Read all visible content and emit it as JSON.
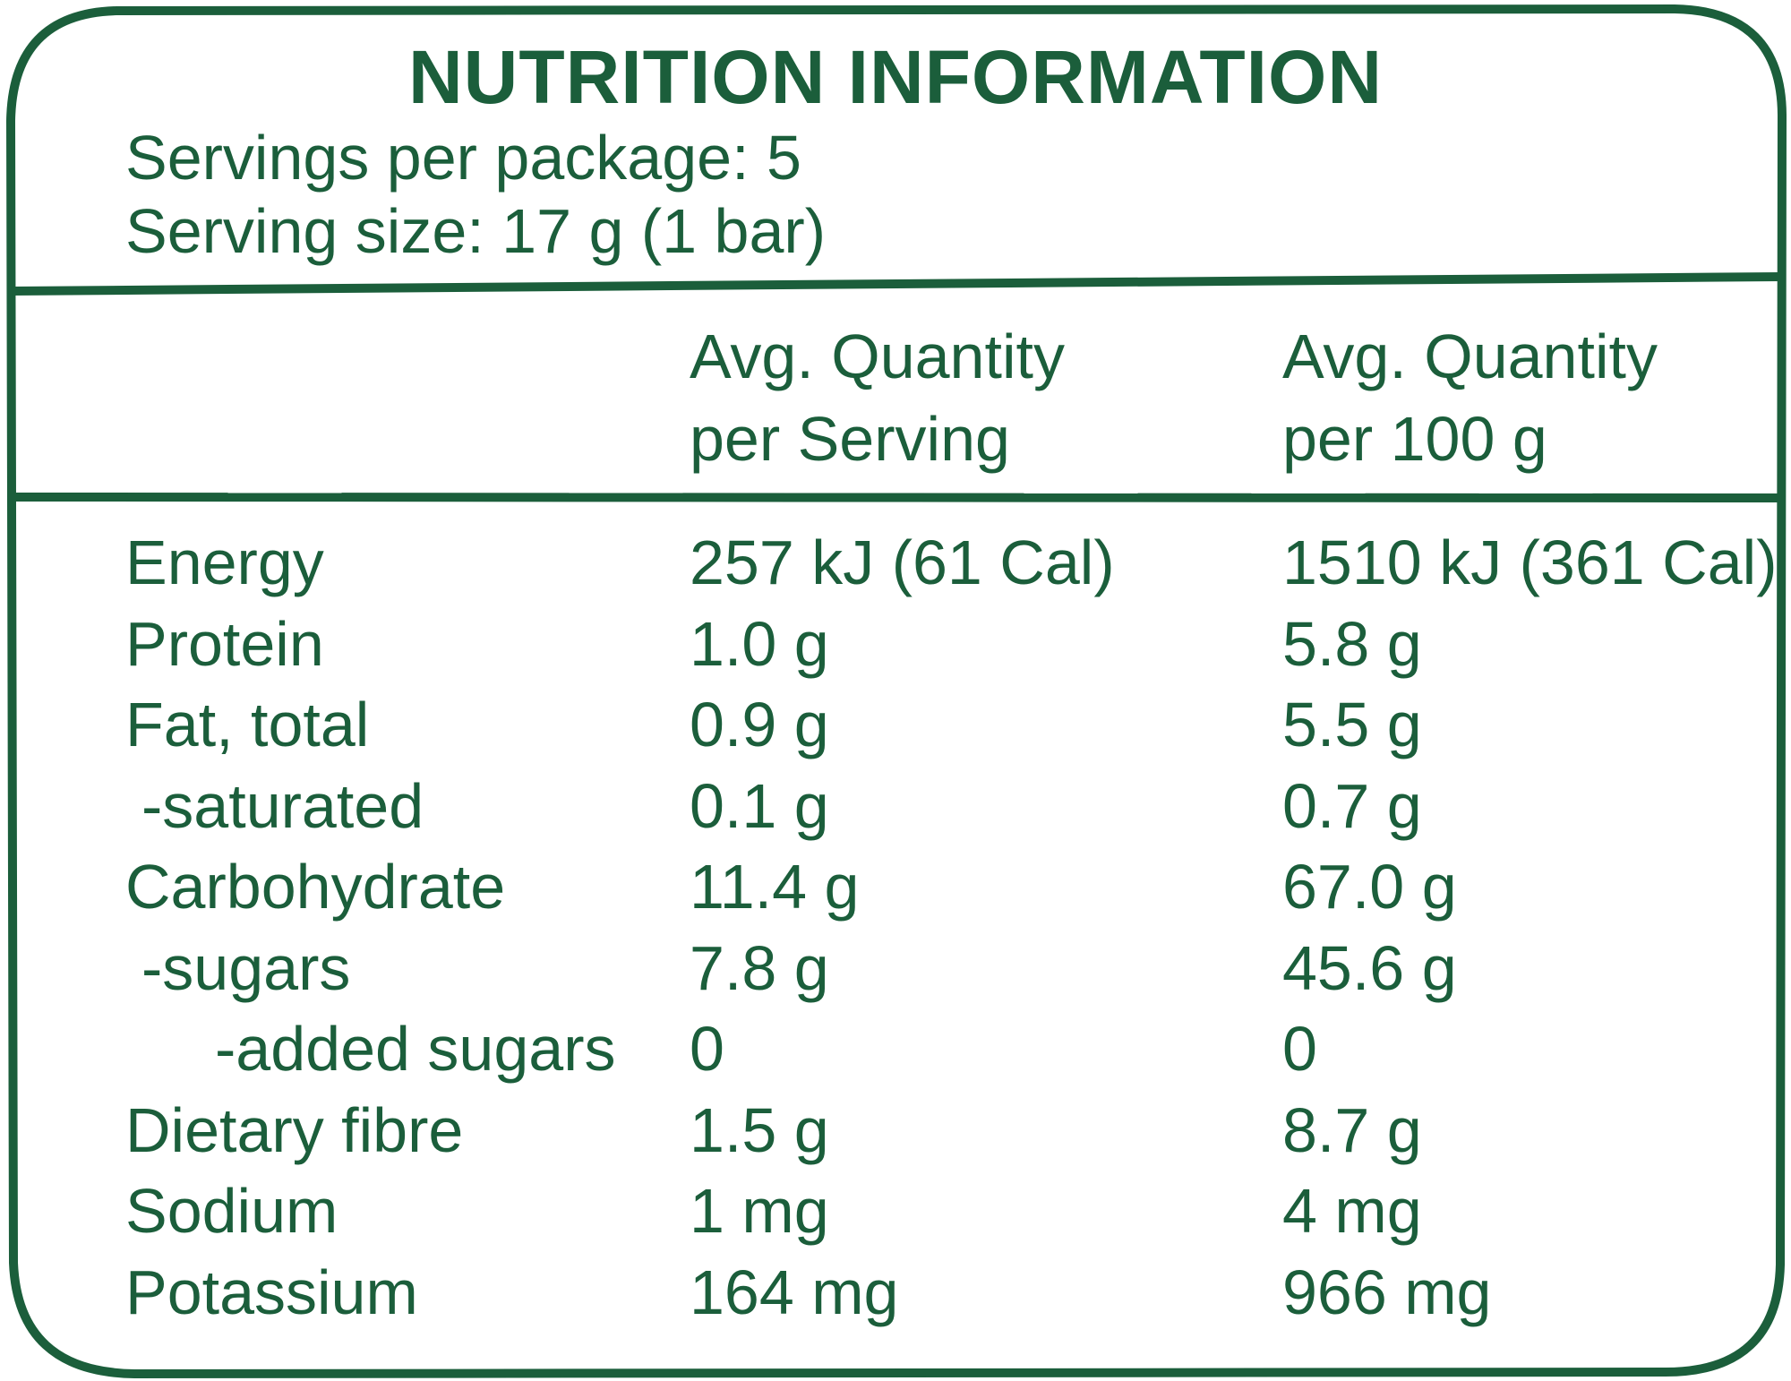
{
  "panel": {
    "title": "NUTRITION INFORMATION",
    "servings_per_package": "Servings per package: 5",
    "serving_size": "Serving size: 17 g (1 bar)",
    "border_color": "#1b5e3b"
  },
  "columns": {
    "per_serving_line1": "Avg. Quantity",
    "per_serving_line2": "per Serving",
    "per_100g_line1": "Avg. Quantity",
    "per_100g_line2": "per 100 g"
  },
  "rows": [
    {
      "name": "Energy",
      "per_serving": "257 kJ (61 Cal)",
      "per_100g": "1510 kJ (361 Cal)"
    },
    {
      "name": "Protein",
      "per_serving": "1.0 g",
      "per_100g": "5.8 g"
    },
    {
      "name": "Fat, total",
      "per_serving": "0.9 g",
      "per_100g": "5.5 g"
    },
    {
      "name": "-saturated",
      "per_serving": "0.1 g",
      "per_100g": "0.7 g"
    },
    {
      "name": "Carbohydrate",
      "per_serving": "11.4 g",
      "per_100g": "67.0 g"
    },
    {
      "name": "-sugars",
      "per_serving": "7.8 g",
      "per_100g": "45.6 g"
    },
    {
      "name": "-added sugars",
      "per_serving": "0",
      "per_100g": "0"
    },
    {
      "name": "Dietary fibre",
      "per_serving": "1.5 g",
      "per_100g": "8.7 g"
    },
    {
      "name": "Sodium",
      "per_serving": "1 mg",
      "per_100g": "4 mg"
    },
    {
      "name": "Potassium",
      "per_serving": "164 mg",
      "per_100g": "966 mg"
    }
  ]
}
